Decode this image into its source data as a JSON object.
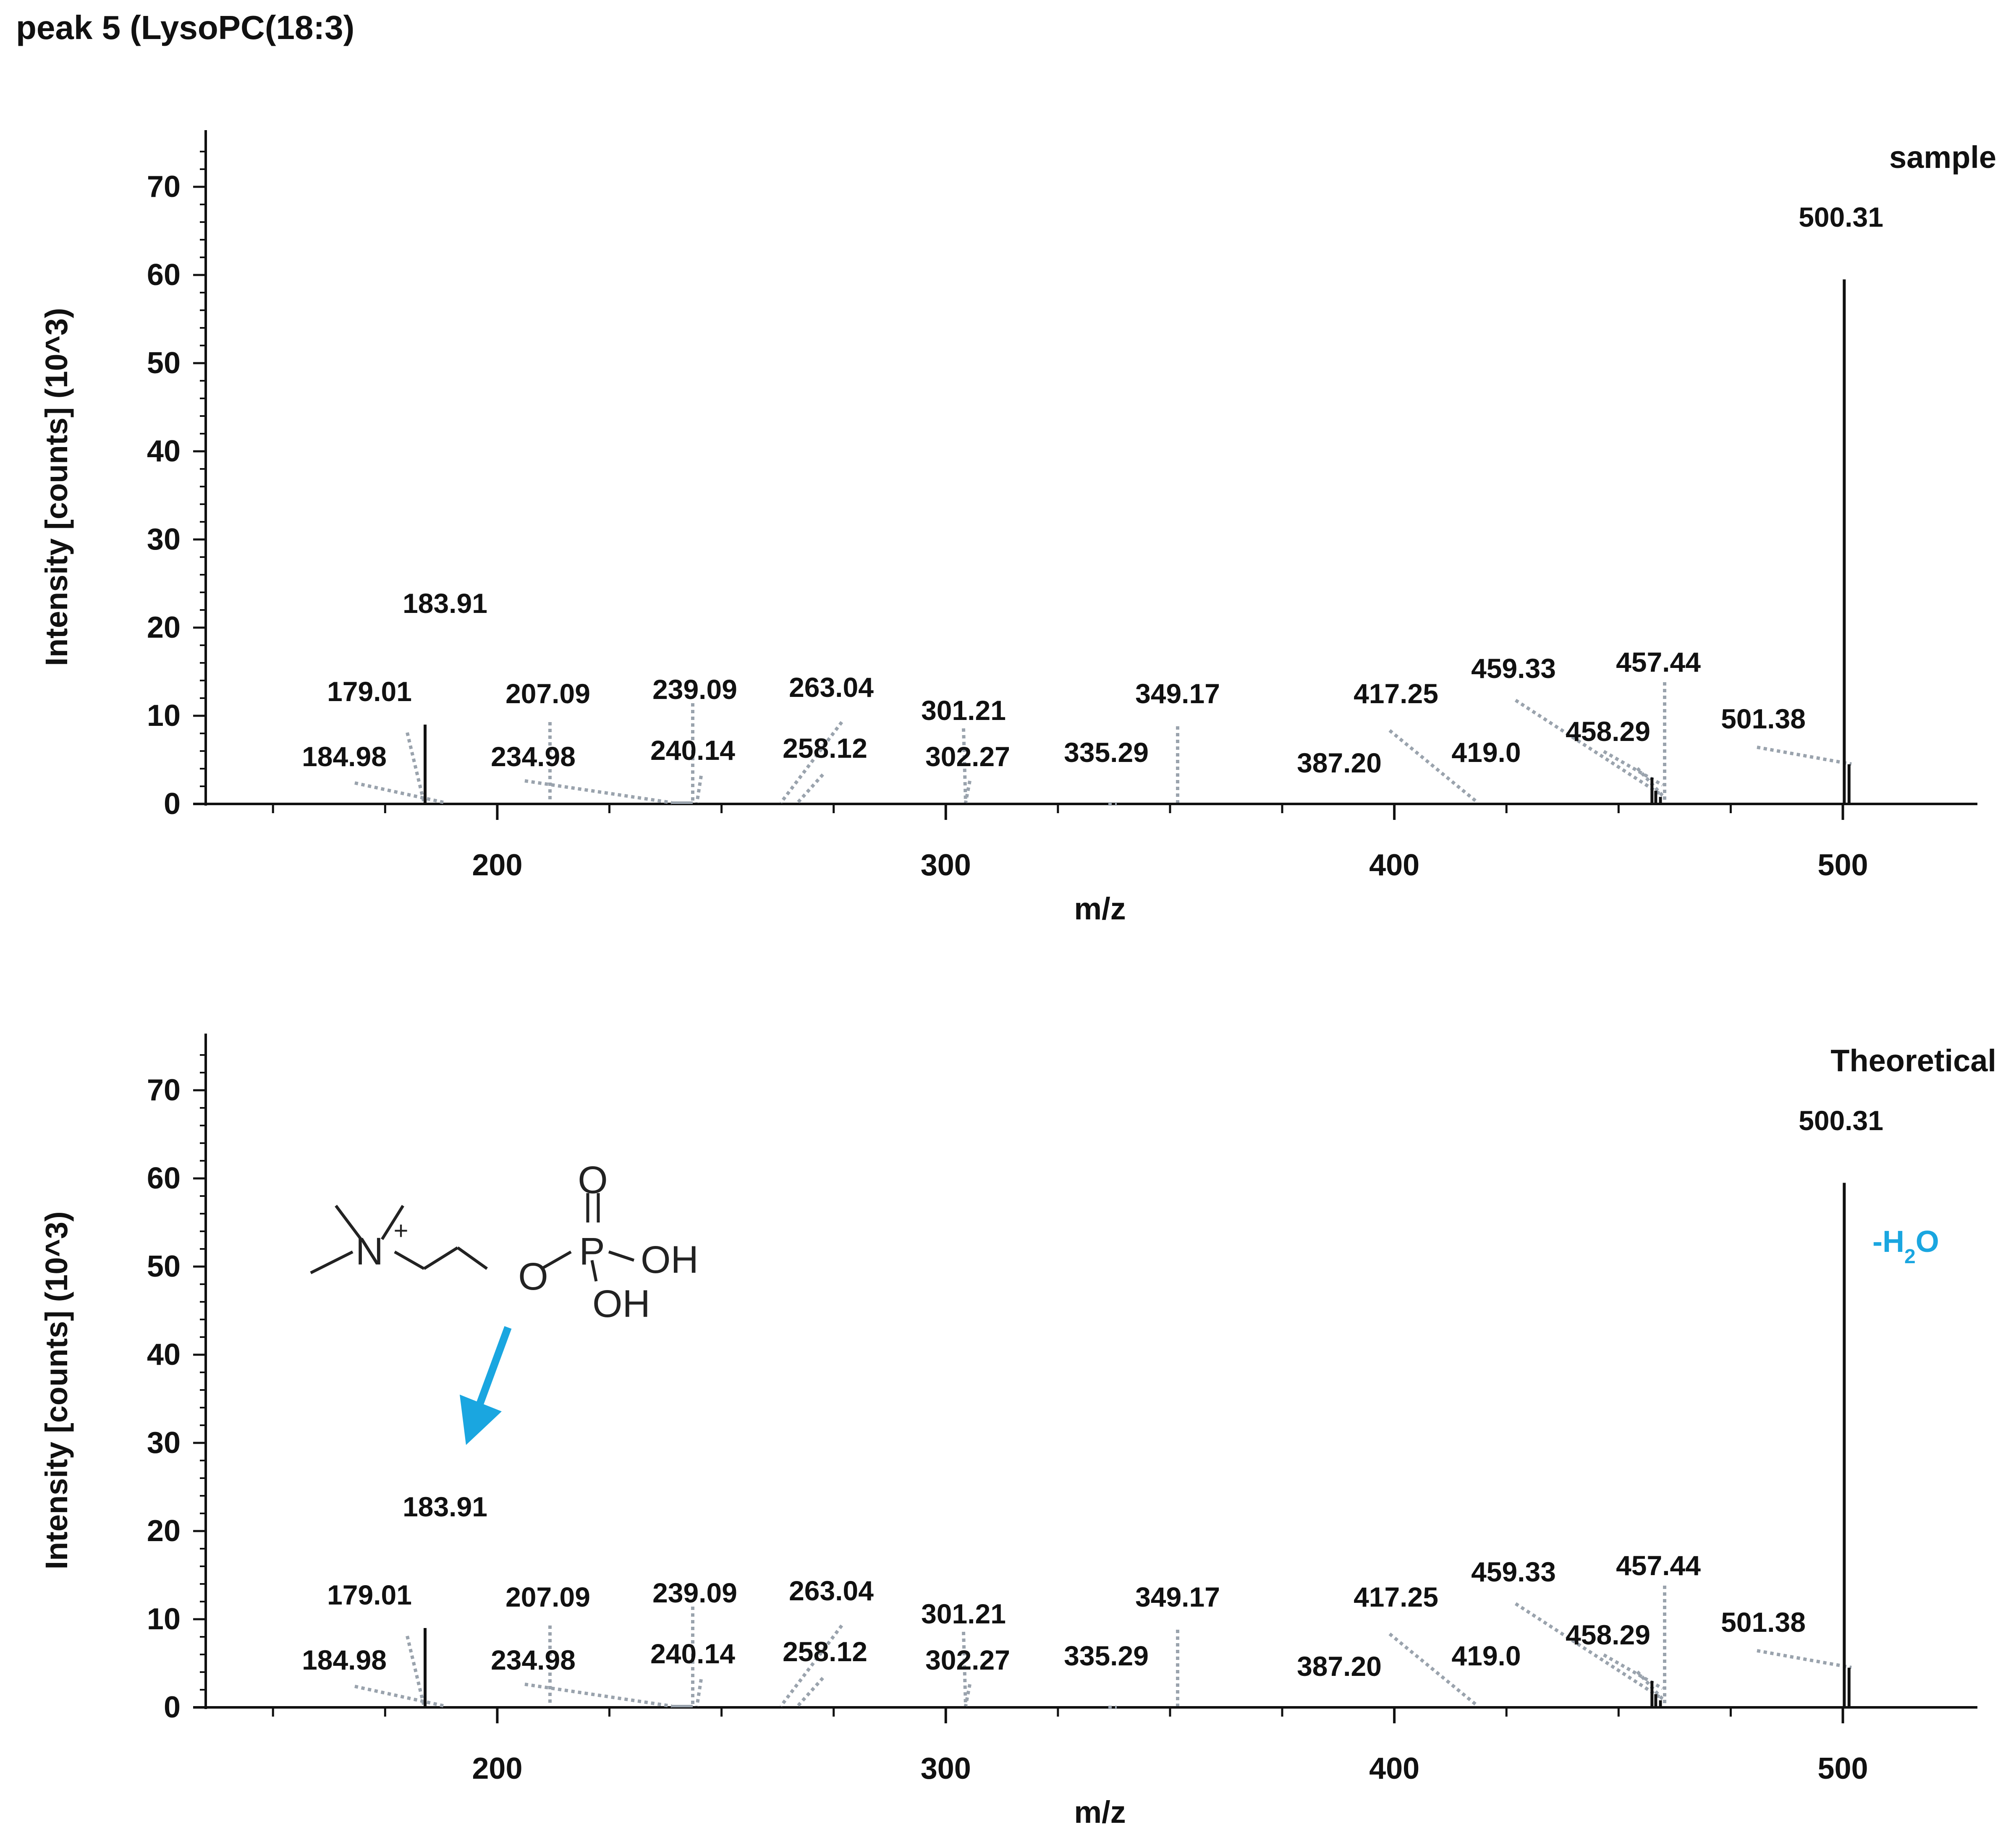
{
  "page": {
    "title": "peak 5 (LysoPC(18:3)"
  },
  "chart_data": [
    {
      "type": "bar",
      "panel_label": "sample",
      "xlabel": "m/z",
      "ylabel": "Intensity [counts] (10^3)",
      "xlim": [
        135,
        530
      ],
      "ylim": [
        0,
        75
      ],
      "x_ticks": [
        200,
        300,
        400,
        500
      ],
      "y_ticks": [
        0,
        10,
        20,
        30,
        40,
        50,
        60,
        70
      ],
      "peaks": [
        {
          "x": 183.91,
          "y": 9.0
        },
        {
          "x": 457.44,
          "y": 3.0
        },
        {
          "x": 458.29,
          "y": 1.5
        },
        {
          "x": 459.33,
          "y": 0.8
        },
        {
          "x": 500.31,
          "y": 59.5
        },
        {
          "x": 501.38,
          "y": 4.5
        }
      ],
      "peak_labels": [
        "500.31",
        "183.91",
        "179.01",
        "184.98",
        "207.09",
        "234.98",
        "239.09",
        "240.14",
        "263.04",
        "258.12",
        "301.21",
        "302.27",
        "335.29",
        "349.17",
        "387.20",
        "417.25",
        "419.0",
        "459.33",
        "458.29",
        "457.44",
        "501.38"
      ]
    },
    {
      "type": "bar",
      "panel_label": "Theoretical",
      "xlabel": "m/z",
      "ylabel": "Intensity [counts] (10^3)",
      "xlim": [
        135,
        530
      ],
      "ylim": [
        0,
        75
      ],
      "x_ticks": [
        200,
        300,
        400,
        500
      ],
      "y_ticks": [
        0,
        10,
        20,
        30,
        40,
        50,
        60,
        70
      ],
      "peaks": [
        {
          "x": 183.91,
          "y": 9.0
        },
        {
          "x": 457.44,
          "y": 3.0
        },
        {
          "x": 458.29,
          "y": 1.5
        },
        {
          "x": 459.33,
          "y": 0.8
        },
        {
          "x": 500.31,
          "y": 59.5
        },
        {
          "x": 501.38,
          "y": 4.5
        }
      ],
      "peak_labels": [
        "500.31",
        "183.91",
        "179.01",
        "184.98",
        "207.09",
        "234.98",
        "239.09",
        "240.14",
        "263.04",
        "258.12",
        "301.21",
        "302.27",
        "335.29",
        "349.17",
        "387.20",
        "417.25",
        "419.0",
        "459.33",
        "458.29",
        "457.44",
        "501.38"
      ],
      "annotation": {
        "text": "-H",
        "subscript": "2",
        "suffix": "O",
        "color": "#1aa6e0"
      },
      "structure_labels": {
        "n_atom": "N",
        "charge": "+",
        "o_ether": "O",
        "p_atom": "P",
        "o_double": "O",
        "oh1": "OH",
        "oh2": "OH"
      },
      "arrow_color": "#1aa6e0"
    }
  ]
}
